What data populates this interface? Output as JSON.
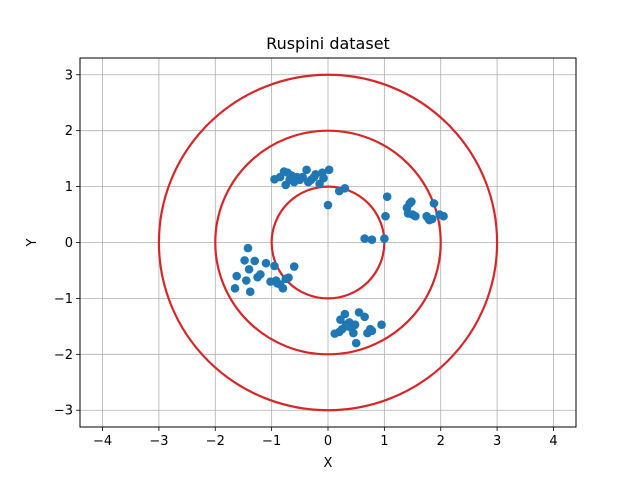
{
  "chart_data": {
    "type": "scatter",
    "title": "Ruspini dataset",
    "xlabel": "X",
    "ylabel": "Y",
    "xlim": [
      -4.4,
      4.4
    ],
    "ylim": [
      -3.3,
      3.3
    ],
    "xticks": [
      -4,
      -3,
      -2,
      -1,
      0,
      1,
      2,
      3,
      4
    ],
    "yticks": [
      -3,
      -2,
      -1,
      0,
      1,
      2,
      3
    ],
    "xtick_labels": [
      "−4",
      "−3",
      "−2",
      "−1",
      "0",
      "1",
      "2",
      "3",
      "4"
    ],
    "ytick_labels": [
      "−3",
      "−2",
      "−1",
      "0",
      "1",
      "2",
      "3"
    ],
    "grid": true,
    "marker_color": "#1f77b4",
    "circle_color": "#d62728",
    "circles": [
      {
        "center": [
          0,
          0
        ],
        "radius": 1
      },
      {
        "center": [
          0,
          0
        ],
        "radius": 2
      },
      {
        "center": [
          0,
          0
        ],
        "radius": 3
      }
    ],
    "points": [
      [
        -0.95,
        1.13
      ],
      [
        -0.85,
        1.17
      ],
      [
        -0.78,
        1.27
      ],
      [
        -0.72,
        1.25
      ],
      [
        -0.65,
        1.2
      ],
      [
        -0.75,
        1.03
      ],
      [
        -0.68,
        1.12
      ],
      [
        -0.6,
        1.08
      ],
      [
        -0.55,
        1.17
      ],
      [
        -0.45,
        1.17
      ],
      [
        -0.38,
        1.3
      ],
      [
        -0.3,
        1.12
      ],
      [
        -0.22,
        1.22
      ],
      [
        -0.15,
        1.05
      ],
      [
        -0.08,
        1.15
      ],
      [
        0.02,
        1.3
      ],
      [
        -0.35,
        1.08
      ],
      [
        -0.5,
        1.12
      ],
      [
        -0.1,
        1.25
      ],
      [
        -0.25,
        1.17
      ],
      [
        0.0,
        0.67
      ],
      [
        0.2,
        0.92
      ],
      [
        0.3,
        0.97
      ],
      [
        0.65,
        0.07
      ],
      [
        0.78,
        0.05
      ],
      [
        1.0,
        0.07
      ],
      [
        1.02,
        0.47
      ],
      [
        1.05,
        0.82
      ],
      [
        1.4,
        0.62
      ],
      [
        1.45,
        0.7
      ],
      [
        1.48,
        0.73
      ],
      [
        1.42,
        0.52
      ],
      [
        1.5,
        0.5
      ],
      [
        1.55,
        0.47
      ],
      [
        1.75,
        0.47
      ],
      [
        1.8,
        0.4
      ],
      [
        1.85,
        0.42
      ],
      [
        1.88,
        0.7
      ],
      [
        1.98,
        0.5
      ],
      [
        2.05,
        0.47
      ],
      [
        1.78,
        0.43
      ],
      [
        -1.65,
        -0.82
      ],
      [
        -1.62,
        -0.6
      ],
      [
        -1.48,
        -0.32
      ],
      [
        -1.42,
        -0.1
      ],
      [
        -1.45,
        -0.68
      ],
      [
        -1.38,
        -0.88
      ],
      [
        -1.4,
        -0.48
      ],
      [
        -1.3,
        -0.33
      ],
      [
        -1.25,
        -0.62
      ],
      [
        -1.2,
        -0.57
      ],
      [
        -1.1,
        -0.37
      ],
      [
        -1.02,
        -0.7
      ],
      [
        -0.95,
        -0.42
      ],
      [
        -0.92,
        -0.68
      ],
      [
        -0.9,
        -0.73
      ],
      [
        -0.85,
        -0.75
      ],
      [
        -0.8,
        -0.82
      ],
      [
        -0.75,
        -0.65
      ],
      [
        -0.7,
        -0.63
      ],
      [
        -0.6,
        -0.43
      ],
      [
        0.12,
        -1.63
      ],
      [
        0.2,
        -1.6
      ],
      [
        0.25,
        -1.55
      ],
      [
        0.3,
        -1.28
      ],
      [
        0.32,
        -1.47
      ],
      [
        0.22,
        -1.38
      ],
      [
        0.38,
        -1.43
      ],
      [
        0.42,
        -1.53
      ],
      [
        0.48,
        -1.47
      ],
      [
        0.45,
        -1.62
      ],
      [
        0.5,
        -1.8
      ],
      [
        0.55,
        -1.25
      ],
      [
        0.65,
        -1.33
      ],
      [
        0.7,
        -1.62
      ],
      [
        0.75,
        -1.55
      ],
      [
        0.78,
        -1.58
      ],
      [
        0.95,
        -1.47
      ],
      [
        0.35,
        -1.5
      ]
    ]
  }
}
